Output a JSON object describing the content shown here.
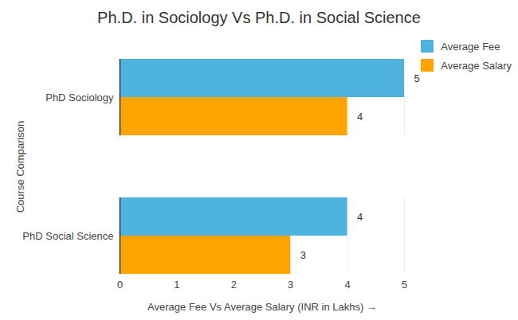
{
  "chart_data": {
    "type": "bar",
    "orientation": "horizontal",
    "title": "Ph.D. in Sociology Vs Ph.D. in Social Science",
    "x_label": "Average Fee Vs Average Salary (INR in Lakhs)",
    "y_label": "Course Comparison",
    "categories": [
      "PhD Sociology",
      "PhD Social Science"
    ],
    "series": [
      {
        "name": "Average Fee",
        "color": "#4eb3de",
        "values": [
          5,
          4
        ]
      },
      {
        "name": "Average Salary",
        "color": "#ffa400",
        "values": [
          4,
          3
        ]
      }
    ],
    "xlim": [
      0,
      5
    ],
    "xticks": [
      0,
      1,
      2,
      3,
      4,
      5
    ],
    "grid": true,
    "legend": "top-right",
    "data_labels": true
  }
}
